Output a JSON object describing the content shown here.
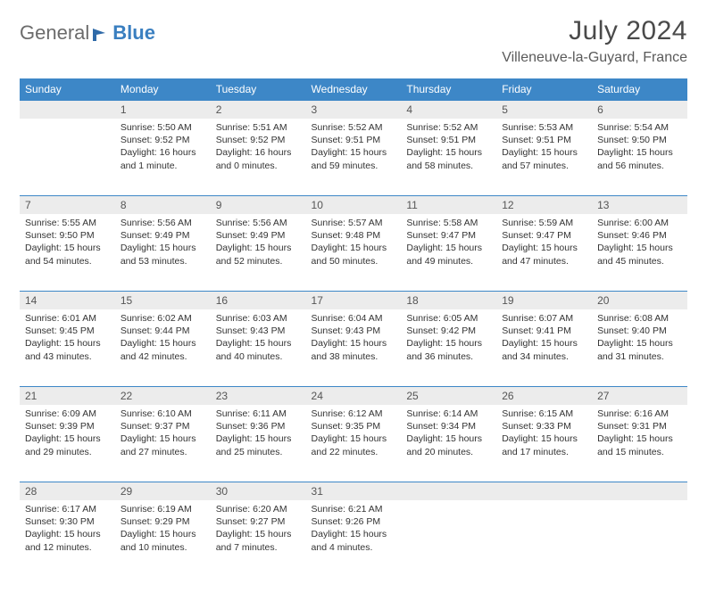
{
  "logo": {
    "general": "General",
    "blue": "Blue"
  },
  "title": "July 2024",
  "location": "Villeneuve-la-Guyard, France",
  "colors": {
    "header_bg": "#3d87c7",
    "header_text": "#ffffff",
    "daynum_bg": "#ececec",
    "daynum_border": "#3d87c7",
    "body_text": "#333333",
    "logo_gray": "#6b6b6b",
    "logo_blue": "#3a7fc0"
  },
  "weekdays": [
    "Sunday",
    "Monday",
    "Tuesday",
    "Wednesday",
    "Thursday",
    "Friday",
    "Saturday"
  ],
  "weeks": [
    [
      null,
      {
        "n": "1",
        "sunrise": "Sunrise: 5:50 AM",
        "sunset": "Sunset: 9:52 PM",
        "daylight": "Daylight: 16 hours and 1 minute."
      },
      {
        "n": "2",
        "sunrise": "Sunrise: 5:51 AM",
        "sunset": "Sunset: 9:52 PM",
        "daylight": "Daylight: 16 hours and 0 minutes."
      },
      {
        "n": "3",
        "sunrise": "Sunrise: 5:52 AM",
        "sunset": "Sunset: 9:51 PM",
        "daylight": "Daylight: 15 hours and 59 minutes."
      },
      {
        "n": "4",
        "sunrise": "Sunrise: 5:52 AM",
        "sunset": "Sunset: 9:51 PM",
        "daylight": "Daylight: 15 hours and 58 minutes."
      },
      {
        "n": "5",
        "sunrise": "Sunrise: 5:53 AM",
        "sunset": "Sunset: 9:51 PM",
        "daylight": "Daylight: 15 hours and 57 minutes."
      },
      {
        "n": "6",
        "sunrise": "Sunrise: 5:54 AM",
        "sunset": "Sunset: 9:50 PM",
        "daylight": "Daylight: 15 hours and 56 minutes."
      }
    ],
    [
      {
        "n": "7",
        "sunrise": "Sunrise: 5:55 AM",
        "sunset": "Sunset: 9:50 PM",
        "daylight": "Daylight: 15 hours and 54 minutes."
      },
      {
        "n": "8",
        "sunrise": "Sunrise: 5:56 AM",
        "sunset": "Sunset: 9:49 PM",
        "daylight": "Daylight: 15 hours and 53 minutes."
      },
      {
        "n": "9",
        "sunrise": "Sunrise: 5:56 AM",
        "sunset": "Sunset: 9:49 PM",
        "daylight": "Daylight: 15 hours and 52 minutes."
      },
      {
        "n": "10",
        "sunrise": "Sunrise: 5:57 AM",
        "sunset": "Sunset: 9:48 PM",
        "daylight": "Daylight: 15 hours and 50 minutes."
      },
      {
        "n": "11",
        "sunrise": "Sunrise: 5:58 AM",
        "sunset": "Sunset: 9:47 PM",
        "daylight": "Daylight: 15 hours and 49 minutes."
      },
      {
        "n": "12",
        "sunrise": "Sunrise: 5:59 AM",
        "sunset": "Sunset: 9:47 PM",
        "daylight": "Daylight: 15 hours and 47 minutes."
      },
      {
        "n": "13",
        "sunrise": "Sunrise: 6:00 AM",
        "sunset": "Sunset: 9:46 PM",
        "daylight": "Daylight: 15 hours and 45 minutes."
      }
    ],
    [
      {
        "n": "14",
        "sunrise": "Sunrise: 6:01 AM",
        "sunset": "Sunset: 9:45 PM",
        "daylight": "Daylight: 15 hours and 43 minutes."
      },
      {
        "n": "15",
        "sunrise": "Sunrise: 6:02 AM",
        "sunset": "Sunset: 9:44 PM",
        "daylight": "Daylight: 15 hours and 42 minutes."
      },
      {
        "n": "16",
        "sunrise": "Sunrise: 6:03 AM",
        "sunset": "Sunset: 9:43 PM",
        "daylight": "Daylight: 15 hours and 40 minutes."
      },
      {
        "n": "17",
        "sunrise": "Sunrise: 6:04 AM",
        "sunset": "Sunset: 9:43 PM",
        "daylight": "Daylight: 15 hours and 38 minutes."
      },
      {
        "n": "18",
        "sunrise": "Sunrise: 6:05 AM",
        "sunset": "Sunset: 9:42 PM",
        "daylight": "Daylight: 15 hours and 36 minutes."
      },
      {
        "n": "19",
        "sunrise": "Sunrise: 6:07 AM",
        "sunset": "Sunset: 9:41 PM",
        "daylight": "Daylight: 15 hours and 34 minutes."
      },
      {
        "n": "20",
        "sunrise": "Sunrise: 6:08 AM",
        "sunset": "Sunset: 9:40 PM",
        "daylight": "Daylight: 15 hours and 31 minutes."
      }
    ],
    [
      {
        "n": "21",
        "sunrise": "Sunrise: 6:09 AM",
        "sunset": "Sunset: 9:39 PM",
        "daylight": "Daylight: 15 hours and 29 minutes."
      },
      {
        "n": "22",
        "sunrise": "Sunrise: 6:10 AM",
        "sunset": "Sunset: 9:37 PM",
        "daylight": "Daylight: 15 hours and 27 minutes."
      },
      {
        "n": "23",
        "sunrise": "Sunrise: 6:11 AM",
        "sunset": "Sunset: 9:36 PM",
        "daylight": "Daylight: 15 hours and 25 minutes."
      },
      {
        "n": "24",
        "sunrise": "Sunrise: 6:12 AM",
        "sunset": "Sunset: 9:35 PM",
        "daylight": "Daylight: 15 hours and 22 minutes."
      },
      {
        "n": "25",
        "sunrise": "Sunrise: 6:14 AM",
        "sunset": "Sunset: 9:34 PM",
        "daylight": "Daylight: 15 hours and 20 minutes."
      },
      {
        "n": "26",
        "sunrise": "Sunrise: 6:15 AM",
        "sunset": "Sunset: 9:33 PM",
        "daylight": "Daylight: 15 hours and 17 minutes."
      },
      {
        "n": "27",
        "sunrise": "Sunrise: 6:16 AM",
        "sunset": "Sunset: 9:31 PM",
        "daylight": "Daylight: 15 hours and 15 minutes."
      }
    ],
    [
      {
        "n": "28",
        "sunrise": "Sunrise: 6:17 AM",
        "sunset": "Sunset: 9:30 PM",
        "daylight": "Daylight: 15 hours and 12 minutes."
      },
      {
        "n": "29",
        "sunrise": "Sunrise: 6:19 AM",
        "sunset": "Sunset: 9:29 PM",
        "daylight": "Daylight: 15 hours and 10 minutes."
      },
      {
        "n": "30",
        "sunrise": "Sunrise: 6:20 AM",
        "sunset": "Sunset: 9:27 PM",
        "daylight": "Daylight: 15 hours and 7 minutes."
      },
      {
        "n": "31",
        "sunrise": "Sunrise: 6:21 AM",
        "sunset": "Sunset: 9:26 PM",
        "daylight": "Daylight: 15 hours and 4 minutes."
      },
      null,
      null,
      null
    ]
  ]
}
